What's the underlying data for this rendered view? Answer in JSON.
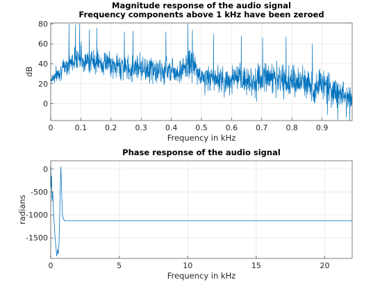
{
  "chart_data": [
    {
      "type": "line",
      "title": [
        "Magnitude response of the audio signal",
        "Frequency components above 1 kHz have been zeroed"
      ],
      "xlabel": "Frequency in kHz",
      "ylabel": "dB",
      "xlim": [
        0,
        1.0
      ],
      "ylim": [
        -17,
        81
      ],
      "xticks": [
        0,
        0.1,
        0.2,
        0.3,
        0.4,
        0.5,
        0.6,
        0.7,
        0.8,
        0.9
      ],
      "xtick_labels": [
        "0",
        "0.1",
        "0.2",
        "0.3",
        "0.4",
        "0.5",
        "0.6",
        "0.7",
        "0.8",
        "0.9"
      ],
      "yticks": [
        0,
        20,
        40,
        60,
        80
      ],
      "ytick_labels": [
        "0",
        "20",
        "40",
        "60",
        "80"
      ],
      "grid": true,
      "line_color": "#0072bd",
      "series": [
        {
          "envelope": {
            "x": [
              0,
              0.01,
              0.02,
              0.03,
              0.04,
              0.05,
              0.06,
              0.07,
              0.08,
              0.09,
              0.1,
              0.11,
              0.12,
              0.13,
              0.14,
              0.15,
              0.16,
              0.17,
              0.18,
              0.19,
              0.2,
              0.21,
              0.22,
              0.23,
              0.24,
              0.25,
              0.26,
              0.27,
              0.28,
              0.29,
              0.3,
              0.31,
              0.32,
              0.33,
              0.34,
              0.35,
              0.36,
              0.37,
              0.38,
              0.39,
              0.4,
              0.41,
              0.42,
              0.43,
              0.44,
              0.45,
              0.46,
              0.47,
              0.48,
              0.49,
              0.5,
              0.51,
              0.52,
              0.53,
              0.54,
              0.55,
              0.56,
              0.57,
              0.58,
              0.59,
              0.6,
              0.61,
              0.62,
              0.63,
              0.64,
              0.65,
              0.66,
              0.67,
              0.68,
              0.69,
              0.7,
              0.71,
              0.72,
              0.73,
              0.74,
              0.75,
              0.76,
              0.77,
              0.78,
              0.79,
              0.8,
              0.81,
              0.82,
              0.83,
              0.84,
              0.85,
              0.86,
              0.87,
              0.88,
              0.89,
              0.9,
              0.91,
              0.92,
              0.93,
              0.94,
              0.95,
              0.96,
              0.97,
              0.98,
              0.99,
              1.0
            ],
            "lo": [
              14,
              16,
              18,
              20,
              22,
              24,
              25,
              26,
              28,
              30,
              26,
              26,
              27,
              26,
              25,
              24,
              24,
              22,
              24,
              26,
              22,
              22,
              20,
              18,
              19,
              18,
              19,
              16,
              19,
              20,
              18,
              16,
              15,
              15,
              14,
              14,
              14,
              12,
              14,
              16,
              14,
              16,
              14,
              13,
              14,
              16,
              18,
              18,
              14,
              10,
              8,
              6,
              6,
              5,
              4,
              4,
              5,
              3,
              2,
              3,
              5,
              4,
              4,
              3,
              3,
              2,
              1,
              0,
              0,
              0,
              2,
              4,
              6,
              6,
              3,
              2,
              0,
              -1,
              -1,
              0,
              0,
              -1,
              -2,
              -2,
              -3,
              -3,
              -4,
              -4,
              -5,
              -5,
              -5,
              -6,
              -8,
              -9,
              -11,
              -12,
              -10,
              -10,
              -10,
              -12,
              -14
            ],
            "hi": [
              34,
              38,
              40,
              44,
              48,
              53,
              55,
              57,
              62,
              66,
              66,
              60,
              58,
              58,
              60,
              62,
              58,
              55,
              58,
              58,
              54,
              52,
              56,
              58,
              55,
              53,
              52,
              52,
              57,
              58,
              55,
              53,
              55,
              56,
              53,
              51,
              50,
              48,
              52,
              56,
              54,
              52,
              50,
              50,
              55,
              58,
              63,
              62,
              56,
              48,
              45,
              44,
              46,
              47,
              45,
              44,
              48,
              45,
              40,
              42,
              46,
              47,
              45,
              43,
              44,
              46,
              48,
              45,
              42,
              45,
              48,
              50,
              52,
              51,
              47,
              44,
              45,
              47,
              45,
              42,
              44,
              45,
              43,
              44,
              46,
              45,
              42,
              38,
              40,
              44,
              46,
              44,
              40,
              38,
              35,
              32,
              34,
              30,
              28,
              28,
              26
            ]
          },
          "spikes": [
            [
              0.061,
              80
            ],
            [
              0.082,
              79
            ],
            [
              0.096,
              80
            ],
            [
              0.128,
              74
            ],
            [
              0.153,
              76
            ],
            [
              0.244,
              72
            ],
            [
              0.273,
              73
            ],
            [
              0.382,
              72
            ],
            [
              0.455,
              80
            ],
            [
              0.47,
              74
            ],
            [
              0.54,
              70
            ],
            [
              0.632,
              68
            ],
            [
              0.703,
              66
            ],
            [
              0.781,
              67
            ],
            [
              0.868,
              60
            ],
            [
              0.918,
              -11
            ],
            [
              0.952,
              -16
            ],
            [
              0.981,
              -14
            ],
            [
              0.992,
              -17
            ]
          ]
        }
      ]
    },
    {
      "type": "line",
      "title": "Phase response of the audio signal",
      "xlabel": "Frequency in kHz",
      "ylabel": "radians",
      "xlim": [
        0,
        22
      ],
      "ylim": [
        -1950,
        180
      ],
      "xticks": [
        0,
        5,
        10,
        15,
        20
      ],
      "xtick_labels": [
        "0",
        "5",
        "10",
        "15",
        "20"
      ],
      "yticks": [
        -1500,
        -1000,
        -500,
        0
      ],
      "ytick_labels": [
        "-1500",
        "-1000",
        "-500",
        "0"
      ],
      "grid": true,
      "line_color": "#0072bd",
      "series": [
        {
          "x": [
            0,
            0.03,
            0.06,
            0.1,
            0.15,
            0.2,
            0.26,
            0.32,
            0.38,
            0.44,
            0.5,
            0.55,
            0.6,
            0.65,
            0.7,
            0.74,
            0.78,
            0.82,
            0.86,
            0.9,
            0.94,
            0.98,
            1.0,
            1.05,
            1.2,
            2,
            5,
            10,
            15,
            20,
            22
          ],
          "y": [
            60,
            -400,
            -150,
            -700,
            -500,
            -900,
            -1200,
            -1500,
            -1700,
            -1900,
            -1750,
            -1850,
            -1650,
            -1100,
            -400,
            50,
            -300,
            -700,
            -1000,
            -1050,
            -1100,
            -1100,
            -1130,
            -1130,
            -1130,
            -1130,
            -1130,
            -1130,
            -1130,
            -1130,
            -1130
          ]
        }
      ]
    }
  ]
}
